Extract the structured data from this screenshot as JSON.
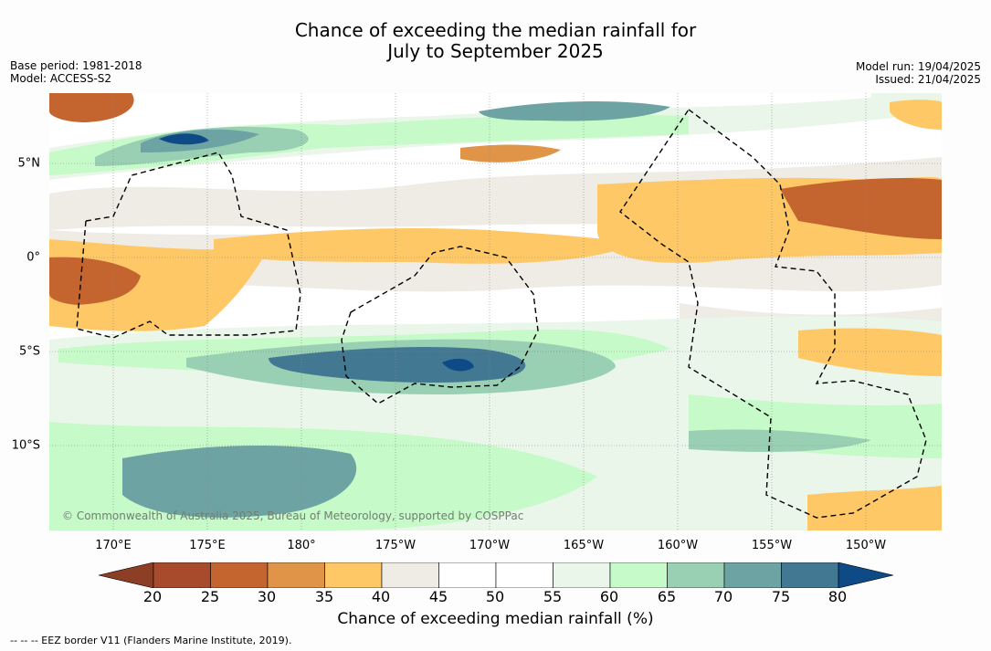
{
  "title_line1": "Chance of exceeding the median rainfall for",
  "title_line2": "July to September 2025",
  "meta_left": {
    "base_period": "Base period: 1981-2018",
    "model": "Model: ACCESS-S2"
  },
  "meta_right": {
    "model_run": "Model run: 19/04/2025",
    "issued": "Issued: 21/04/2025"
  },
  "lon_labels": [
    "170°E",
    "175°E",
    "180°",
    "175°W",
    "170°W",
    "165°W",
    "160°W",
    "155°W",
    "150°W"
  ],
  "lat_labels": [
    "5°N",
    "0°",
    "5°S",
    "10°S"
  ],
  "copyright": "© Commonwealth of Australia 2025, Bureau of Meteorology, supported by COSPPac",
  "colorbar": {
    "ticks": [
      "20",
      "25",
      "30",
      "35",
      "40",
      "45",
      "50",
      "55",
      "60",
      "65",
      "70",
      "75",
      "80"
    ],
    "colors": [
      "#a84a2c",
      "#c4652f",
      "#df9448",
      "#fec867",
      "#efebe5",
      "#ffffff",
      "#ffffff",
      "#eaf6ea",
      "#c6fac8",
      "#99d0b4",
      "#6ea3a4",
      "#437892"
    ],
    "under_color": "#8c3f24",
    "over_color": "#0e4a85",
    "label": "Chance of exceeding median rainfall (%)"
  },
  "legend_eez": "--  --  -- EEZ border V11 (Flanders Marine Institute, 2019)."
}
